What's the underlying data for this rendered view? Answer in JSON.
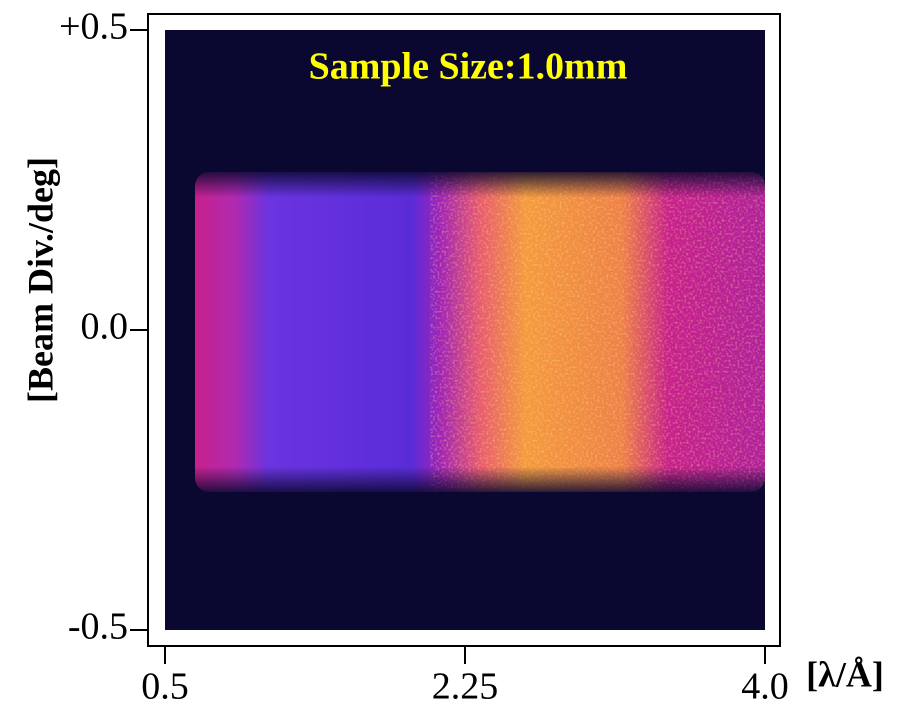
{
  "chart_data": {
    "type": "heatmap",
    "title": "Sample Size:1.0mm",
    "xlabel": "[λ/Å]",
    "ylabel": "[Beam Div./deg]",
    "xlim": [
      0.5,
      4.0
    ],
    "xticks": [
      0.5,
      2.25,
      {
        "value": 4.0,
        "label": "4.0"
      }
    ],
    "ylim": [
      -0.5,
      0.5
    ],
    "yticks": [
      {
        "value": 0.5,
        "label": "+0.5"
      },
      {
        "value": 0,
        "label": "0.0"
      },
      {
        "value": -0.5,
        "label": "-0.5"
      }
    ]
  }
}
